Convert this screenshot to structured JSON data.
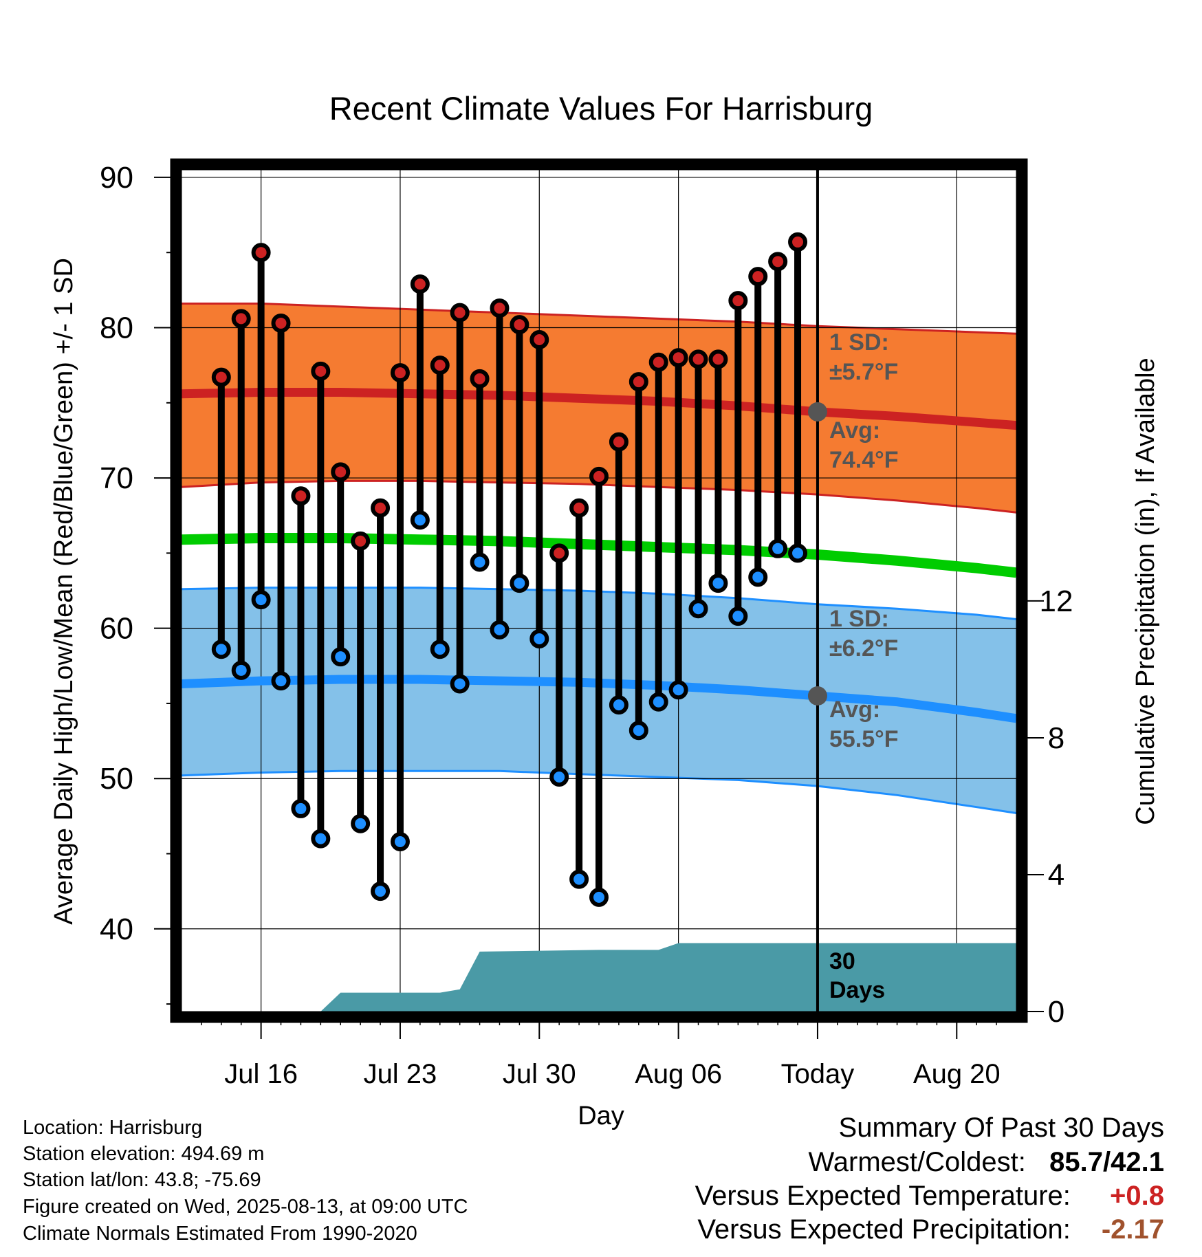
{
  "chart_data": {
    "type": "line",
    "title": "Recent Climate Values For Harrisburg",
    "xlabel": "Day",
    "ylabel": "Average Daily High/Low/Mean (Red/Blue/Green) +/- 1 SD",
    "y2label": "Cumulative Precipitation (in), If Available",
    "ylim": [
      34.5,
      90.5
    ],
    "y_ticks": [
      40,
      50,
      60,
      70,
      80,
      90
    ],
    "y2lim": [
      0,
      24.6
    ],
    "y2_ticks": [
      0,
      4,
      8,
      12
    ],
    "x_domain": [
      "2025-07-12",
      "2025-08-23"
    ],
    "x_ticks": [
      {
        "date": "2025-07-16",
        "label": "Jul 16"
      },
      {
        "date": "2025-07-23",
        "label": "Jul 23"
      },
      {
        "date": "2025-07-30",
        "label": "Jul 30"
      },
      {
        "date": "2025-08-06",
        "label": "Aug 06"
      },
      {
        "date": "2025-08-13",
        "label": "Today"
      },
      {
        "date": "2025-08-20",
        "label": "Aug 20"
      }
    ],
    "today": "2025-08-13",
    "grid": true,
    "normals": {
      "dates": [
        "2025-07-12",
        "2025-07-16",
        "2025-07-20",
        "2025-07-24",
        "2025-07-28",
        "2025-08-01",
        "2025-08-05",
        "2025-08-09",
        "2025-08-13",
        "2025-08-17",
        "2025-08-21",
        "2025-08-23"
      ],
      "high_avg": [
        75.6,
        75.7,
        75.7,
        75.6,
        75.5,
        75.3,
        75.1,
        74.8,
        74.4,
        74.1,
        73.7,
        73.5
      ],
      "high_upper": [
        81.6,
        81.6,
        81.4,
        81.2,
        81.0,
        80.8,
        80.6,
        80.4,
        80.1,
        79.9,
        79.7,
        79.6
      ],
      "high_lower": [
        69.4,
        69.7,
        69.8,
        69.8,
        69.7,
        69.6,
        69.4,
        69.2,
        68.9,
        68.5,
        68.0,
        67.7
      ],
      "mean_avg": [
        65.9,
        66.0,
        66.0,
        65.9,
        65.8,
        65.6,
        65.4,
        65.2,
        64.9,
        64.5,
        64.0,
        63.7
      ],
      "low_avg": [
        56.3,
        56.5,
        56.6,
        56.6,
        56.5,
        56.4,
        56.2,
        55.9,
        55.5,
        55.1,
        54.4,
        54.0
      ],
      "low_upper": [
        62.6,
        62.7,
        62.7,
        62.7,
        62.6,
        62.5,
        62.3,
        62.0,
        61.6,
        61.3,
        60.9,
        60.6
      ],
      "low_lower": [
        50.2,
        50.4,
        50.5,
        50.5,
        50.5,
        50.3,
        50.1,
        49.9,
        49.5,
        48.9,
        48.1,
        47.7
      ]
    },
    "observations": {
      "dates": [
        "2025-07-14",
        "2025-07-15",
        "2025-07-16",
        "2025-07-17",
        "2025-07-18",
        "2025-07-19",
        "2025-07-20",
        "2025-07-21",
        "2025-07-22",
        "2025-07-23",
        "2025-07-24",
        "2025-07-25",
        "2025-07-26",
        "2025-07-27",
        "2025-07-28",
        "2025-07-29",
        "2025-07-30",
        "2025-07-31",
        "2025-08-01",
        "2025-08-02",
        "2025-08-03",
        "2025-08-04",
        "2025-08-05",
        "2025-08-06",
        "2025-08-07",
        "2025-08-08",
        "2025-08-09",
        "2025-08-10",
        "2025-08-11",
        "2025-08-12"
      ],
      "highs": [
        76.7,
        80.6,
        85.0,
        80.3,
        68.8,
        77.1,
        70.4,
        65.8,
        68.0,
        77.0,
        82.9,
        77.5,
        81.0,
        76.6,
        81.3,
        80.2,
        79.2,
        65.0,
        68.0,
        70.1,
        72.4,
        76.4,
        77.7,
        78.0,
        77.9,
        77.9,
        81.8,
        83.4,
        84.4,
        85.7
      ],
      "lows": [
        58.6,
        57.2,
        61.9,
        56.5,
        48.0,
        46.0,
        58.1,
        47.0,
        42.5,
        45.8,
        67.2,
        58.6,
        56.3,
        64.4,
        59.9,
        63.0,
        59.3,
        50.1,
        43.3,
        42.1,
        54.9,
        53.2,
        55.1,
        55.9,
        61.3,
        63.0,
        60.8,
        63.4,
        65.3,
        65.0
      ]
    },
    "precipitation": {
      "dates": [
        "2025-07-12",
        "2025-07-18",
        "2025-07-19",
        "2025-07-20",
        "2025-07-24",
        "2025-07-25",
        "2025-07-26",
        "2025-07-27",
        "2025-08-02",
        "2025-08-05",
        "2025-08-06",
        "2025-08-23"
      ],
      "cumulative": [
        0,
        0,
        0,
        0.55,
        0.55,
        0.55,
        0.65,
        1.75,
        1.8,
        1.8,
        2.0,
        2.0
      ]
    },
    "annotations": {
      "high_sd": [
        "1 SD:",
        "±5.7°F"
      ],
      "high_avg": [
        "Avg:",
        "74.4°F"
      ],
      "low_sd": [
        "1 SD:",
        "±6.2°F"
      ],
      "low_avg": [
        "Avg:",
        "55.5°F"
      ],
      "precip_label": [
        "30",
        "Days"
      ]
    },
    "colors": {
      "high_band": "#f57b31",
      "high_line": "#cc2222",
      "mean_line": "#00cc00",
      "low_band": "#84c1e9",
      "low_line": "#1e8fff",
      "precip_fill": "#4a9aa6",
      "high_dot": "#cc2222",
      "low_dot": "#1e8fff",
      "annotation_text": "#555555",
      "warm_value": "#cc2222",
      "precip_value": "#a0522d"
    }
  },
  "info": {
    "location": "Location: Harrisburg",
    "elevation": "Station elevation: 494.69 m",
    "latlon": "Station lat/lon: 43.8; -75.69",
    "created": "Figure created on Wed, 2025-08-13, at 09:00 UTC",
    "normals": "Climate Normals Estimated From 1990-2020"
  },
  "summary": {
    "title": "Summary Of Past 30 Days",
    "warmest_coldest_label": "Warmest/Coldest:",
    "warmest_coldest_value": "85.7/42.1",
    "temp_label": "Versus Expected Temperature:",
    "temp_value": "+0.8",
    "precip_label": "Versus Expected Precipitation:",
    "precip_value": "-2.17"
  }
}
